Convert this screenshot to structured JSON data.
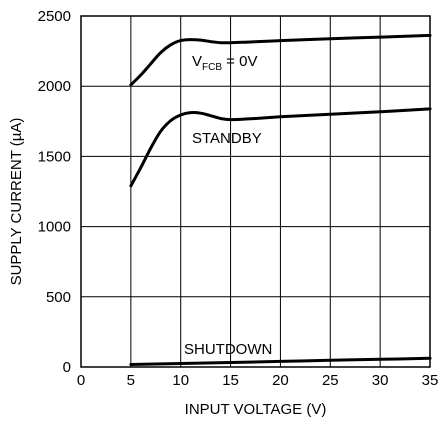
{
  "chart_data": {
    "type": "line",
    "xlabel": "INPUT VOLTAGE (V)",
    "ylabel": "SUPPLY CURRENT (µA)",
    "xlim": [
      0,
      35
    ],
    "ylim": [
      0,
      2500
    ],
    "x_ticks": [
      "0",
      "5",
      "10",
      "15",
      "20",
      "25",
      "30",
      "35"
    ],
    "y_ticks": [
      "0",
      "500",
      "1000",
      "1500",
      "2000",
      "2500"
    ],
    "grid": true,
    "series": [
      {
        "name": "VFCB = 0V",
        "label_main": "V",
        "label_sub": "FCB",
        "label_rest": " = 0V",
        "x": [
          5,
          6,
          7,
          8,
          9,
          10,
          11,
          12,
          13,
          14,
          15,
          17,
          20,
          25,
          30,
          35
        ],
        "y": [
          2010,
          2080,
          2160,
          2240,
          2295,
          2325,
          2332,
          2328,
          2318,
          2310,
          2310,
          2315,
          2325,
          2338,
          2350,
          2362
        ]
      },
      {
        "name": "STANDBY",
        "label_main": "STANDBY",
        "x": [
          5,
          6,
          7,
          8,
          9,
          10,
          11,
          12,
          13,
          14,
          15,
          17,
          20,
          25,
          30,
          35
        ],
        "y": [
          1290,
          1420,
          1560,
          1680,
          1755,
          1795,
          1812,
          1808,
          1790,
          1770,
          1762,
          1768,
          1782,
          1800,
          1818,
          1838
        ]
      },
      {
        "name": "SHUTDOWN",
        "label_main": "SHUTDOWN",
        "x": [
          5,
          10,
          15,
          20,
          25,
          30,
          35
        ],
        "y": [
          18,
          25,
          32,
          40,
          48,
          55,
          62
        ]
      }
    ]
  }
}
